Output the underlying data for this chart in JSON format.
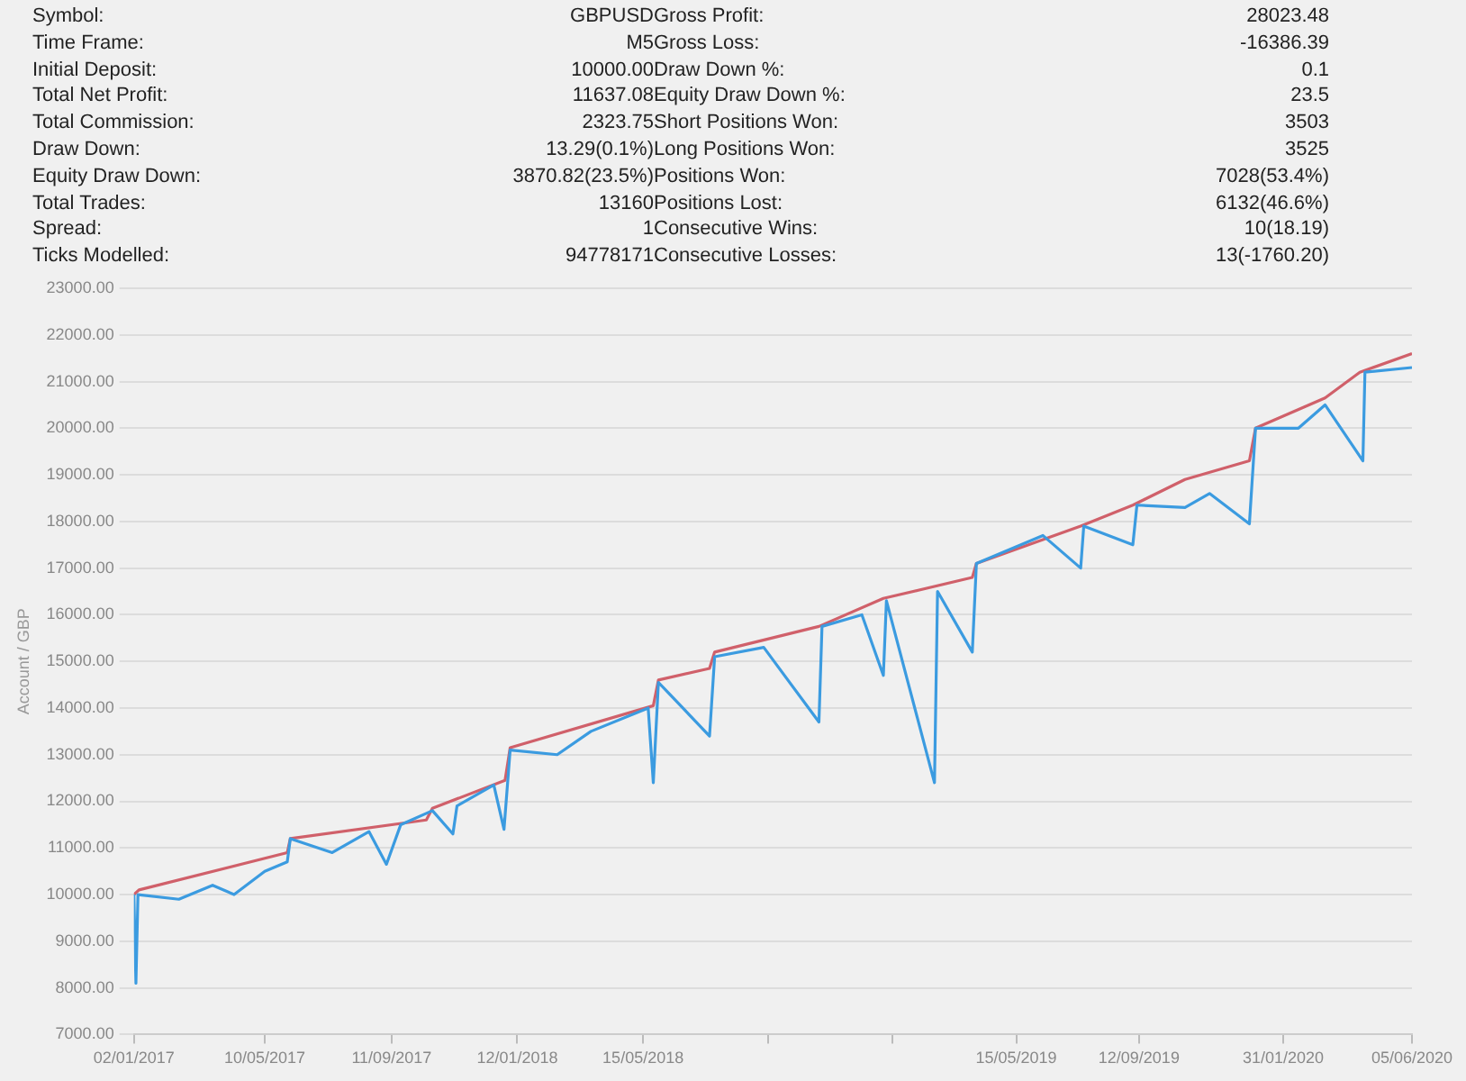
{
  "chart_data": {
    "type": "line",
    "ylabel": "Account / GBP",
    "annotations": [
      "Symbol:",
      "GBPUSD",
      "Gross Profit:",
      "28023.48",
      "Time Frame:",
      "M5",
      "Gross Loss:",
      "-16386.39",
      "Initial Deposit:",
      "10000.00",
      "Draw Down %:",
      "0.1",
      "Total Net Profit:",
      "11637.08",
      "Equity Draw Down %:",
      "23.5",
      "Total Commission:",
      "2323.75",
      "Short Positions Won:",
      "3503",
      "Draw Down:",
      "13.29(0.1%)",
      "Long Positions Won:",
      "3525",
      "Equity Draw Down:",
      "3870.82(23.5%)",
      "Positions Won:",
      "7028(53.4%)",
      "Total Trades:",
      "13160",
      "Positions Lost:",
      "6132(46.6%)",
      "Spread:",
      "1",
      "Consecutive Wins:",
      "10(18.19)",
      "Ticks Modelled:",
      "94778171",
      "Consecutive Losses:",
      "13(-1760.20)"
    ],
    "xlim": [
      "2017-01-02",
      "2020-06-05"
    ],
    "xticks": [
      {
        "value": "2017-01-02",
        "label": "02/01/2017"
      },
      {
        "value": "2017-05-10",
        "label": "10/05/2017"
      },
      {
        "value": "2017-09-11",
        "label": "11/09/2017"
      },
      {
        "value": "2018-01-12",
        "label": "12/01/2018"
      },
      {
        "value": "2018-05-15",
        "label": "15/05/2018"
      },
      {
        "value": "2018-09-14",
        "label": null
      },
      {
        "value": "2019-01-14",
        "label": null
      },
      {
        "value": "2019-05-15",
        "label": "15/05/2019"
      },
      {
        "value": "2019-09-12",
        "label": "12/09/2019"
      },
      {
        "value": "2020-01-31",
        "label": "31/01/2020"
      },
      {
        "value": "2020-06-05",
        "label": "05/06/2020"
      }
    ],
    "ylim": [
      7000,
      23000
    ],
    "yticks": [
      {
        "value": 7000,
        "label": "7000.00"
      },
      {
        "value": 8000,
        "label": "8000.00"
      },
      {
        "value": 9000,
        "label": "9000.00"
      },
      {
        "value": 10000,
        "label": "10000.00"
      },
      {
        "value": 11000,
        "label": "11000.00"
      },
      {
        "value": 12000,
        "label": "12000.00"
      },
      {
        "value": 13000,
        "label": "13000.00"
      },
      {
        "value": 14000,
        "label": "14000.00"
      },
      {
        "value": 15000,
        "label": "15000.00"
      },
      {
        "value": 16000,
        "label": "16000.00"
      },
      {
        "value": 17000,
        "label": "17000.00"
      },
      {
        "value": 18000,
        "label": "18000.00"
      },
      {
        "value": 19000,
        "label": "19000.00"
      },
      {
        "value": 20000,
        "label": "20000.00"
      },
      {
        "value": 21000,
        "label": "21000.00"
      },
      {
        "value": 22000,
        "label": "22000.00"
      },
      {
        "value": 23000,
        "label": "23000.00"
      }
    ],
    "grid": "y",
    "legend": false,
    "marker": "none",
    "line_style": "solid",
    "series": [
      {
        "color": "#3b9be0",
        "x": [
          "2017-01-02",
          "2017-01-04",
          "2017-01-06",
          "2017-02-15",
          "2017-03-20",
          "2017-04-10",
          "2017-05-10",
          "2017-06-01",
          "2017-06-04",
          "2017-07-15",
          "2017-08-20",
          "2017-09-06",
          "2017-09-20",
          "2017-10-21",
          "2017-11-10",
          "2017-11-14",
          "2017-12-20",
          "2017-12-30",
          "2018-01-05",
          "2018-02-20",
          "2018-03-25",
          "2018-05-20",
          "2018-05-25",
          "2018-05-30",
          "2018-07-19",
          "2018-07-24",
          "2018-09-10",
          "2018-11-03",
          "2018-11-06",
          "2018-12-15",
          "2019-01-05",
          "2019-01-08",
          "2019-02-24",
          "2019-02-27",
          "2019-04-02",
          "2019-04-06",
          "2019-06-10",
          "2019-07-17",
          "2019-07-20",
          "2019-09-06",
          "2019-09-10",
          "2019-10-27",
          "2019-11-20",
          "2019-12-29",
          "2020-01-04",
          "2020-02-15",
          "2020-03-12",
          "2020-04-18",
          "2020-04-20",
          "2020-06-05"
        ],
        "values": [
          10000,
          8100,
          10000,
          9900,
          10200,
          10000,
          10500,
          10700,
          11200,
          10900,
          11350,
          10650,
          11500,
          11800,
          11300,
          11900,
          12350,
          11400,
          13100,
          13000,
          13500,
          14000,
          12400,
          14550,
          13400,
          15100,
          15300,
          13700,
          15750,
          16000,
          14700,
          16300,
          12400,
          16500,
          15200,
          17100,
          17700,
          17000,
          17900,
          17500,
          18350,
          18300,
          18600,
          17950,
          20000,
          20000,
          20500,
          19300,
          21200,
          21300
        ]
      },
      {
        "color": "#d0606a",
        "x": [
          "2017-01-02",
          "2017-01-07",
          "2017-06-01",
          "2017-06-04",
          "2017-10-15",
          "2017-10-21",
          "2017-12-31",
          "2018-01-05",
          "2018-05-25",
          "2018-05-30",
          "2018-07-19",
          "2018-07-24",
          "2018-11-03",
          "2019-01-05",
          "2019-04-02",
          "2019-04-06",
          "2019-07-17",
          "2019-09-06",
          "2019-10-27",
          "2019-12-29",
          "2020-01-04",
          "2020-03-12",
          "2020-04-15",
          "2020-06-05"
        ],
        "values": [
          10000,
          10100,
          10900,
          11200,
          11600,
          11850,
          12450,
          13150,
          14050,
          14600,
          14850,
          15200,
          15750,
          16350,
          16800,
          17100,
          17900,
          18350,
          18900,
          19300,
          20000,
          20650,
          21200,
          21600
        ]
      }
    ]
  }
}
